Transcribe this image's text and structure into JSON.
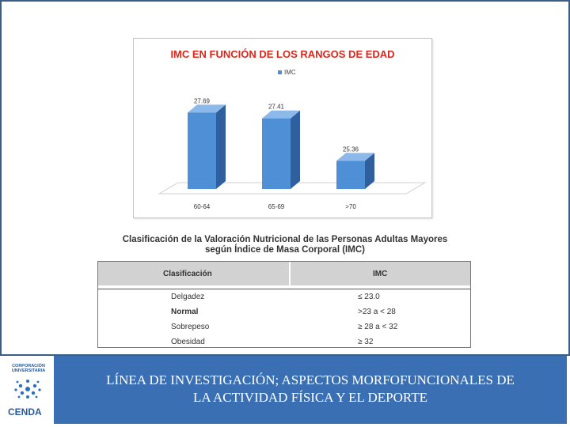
{
  "chart_data": {
    "type": "bar",
    "title": "IMC EN FUNCIÓN DE LOS RANGOS DE EDAD",
    "series": [
      {
        "name": "IMC",
        "values": [
          27.69,
          27.41,
          25.36
        ]
      }
    ],
    "categories": [
      "60-64",
      "65-69",
      ">70"
    ],
    "data_labels": [
      "27.69",
      "27.41",
      "25.36"
    ],
    "legend": "top",
    "grid": false,
    "colors": {
      "bar": "#4f8fd6",
      "bar_side": "#2f5f9c",
      "bar_top": "#8db8ea",
      "title": "#e0251b"
    },
    "ylim": [
      24,
      28.2
    ]
  },
  "table": {
    "caption_line1": "Clasificación de la Valoración Nutricional de las Personas Adultas Mayores",
    "caption_line2": "según Índice de Masa Corporal (IMC)",
    "headers": [
      "Clasificación",
      "IMC"
    ],
    "rows": [
      [
        "Delgadez",
        "≤ 23.0"
      ],
      [
        "Normal",
        ">23  a < 28"
      ],
      [
        "Sobrepeso",
        "≥ 28  a < 32"
      ],
      [
        "Obesidad",
        "≥ 32"
      ]
    ]
  },
  "footer": {
    "line1": "LÍNEA DE INVESTIGACIÓN; ASPECTOS MORFOFUNCIONALES DE",
    "line2": "LA ACTIVIDAD FÍSICA Y EL DEPORTE",
    "logo_top": "CORPORACIÓN UNIVERSITARIA",
    "logo_name": "CENDA",
    "band_color": "#3a70b3"
  }
}
